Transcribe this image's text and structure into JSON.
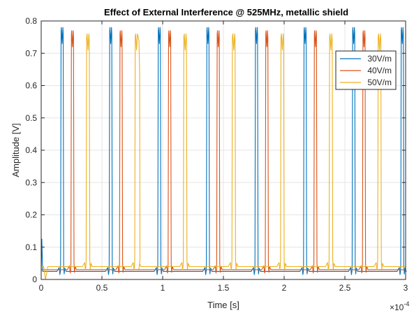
{
  "chart_data": {
    "type": "line",
    "title": "Effect of External Interference @ 525MHz,  metallic shield",
    "xlabel": "Time [s]",
    "ylabel": "Amplitude [V]",
    "x_exponent_label": "×10",
    "x_exponent_power": "-4",
    "x_scale": 0.0001,
    "xlim": [
      0,
      3
    ],
    "ylim": [
      0,
      0.8
    ],
    "xticks": [
      0,
      0.5,
      1,
      1.5,
      2,
      2.5,
      3
    ],
    "xtick_labels": [
      "0",
      "0.5",
      "1",
      "1.5",
      "2",
      "2.5",
      "3"
    ],
    "yticks": [
      0,
      0.1,
      0.2,
      0.3,
      0.4,
      0.5,
      0.6,
      0.7,
      0.8
    ],
    "ytick_labels": [
      "0",
      "0.1",
      "0.2",
      "0.3",
      "0.4",
      "0.5",
      "0.6",
      "0.7",
      "0.8"
    ],
    "grid": true,
    "legend_position": "top-right",
    "series": [
      {
        "name": "30V/m",
        "color": "#0072BD",
        "baseline": 0.025,
        "peak": 0.78,
        "pulse_width": 0.025,
        "pulse_starts": [
          0.16,
          0.56,
          0.96,
          1.36,
          1.76,
          2.16,
          2.56,
          2.96
        ]
      },
      {
        "name": "40V/m",
        "color": "#D95319",
        "baseline": 0.03,
        "peak": 0.77,
        "pulse_width": 0.025,
        "pulse_starts": [
          0.245,
          0.645,
          1.045,
          1.445,
          1.845,
          2.245,
          2.645
        ]
      },
      {
        "name": "50V/m",
        "color": "#EDB120",
        "baseline": 0.04,
        "peak": 0.76,
        "pulse_width": 0.03,
        "pulse_starts": [
          0.37,
          0.77,
          1.17,
          1.57,
          1.97,
          2.37,
          2.77
        ],
        "secondary_peak": 0.645
      }
    ]
  }
}
